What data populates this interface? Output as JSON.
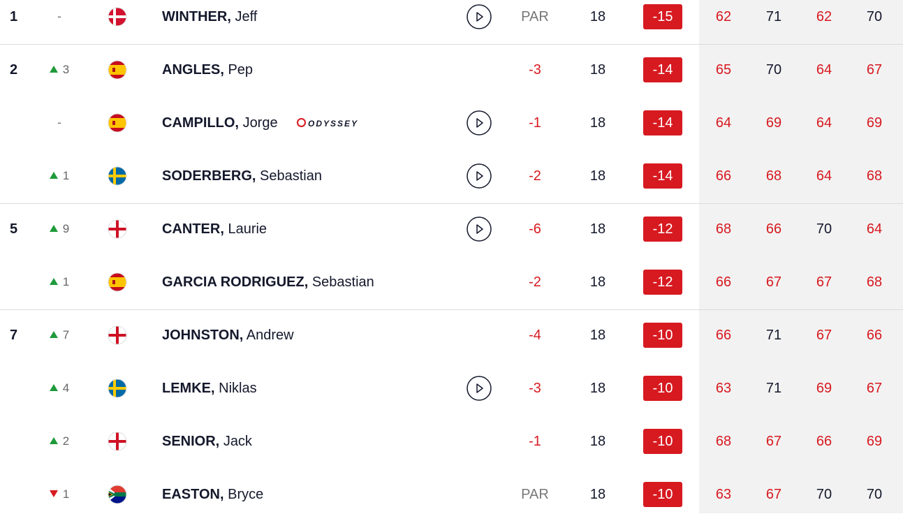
{
  "rows": [
    {
      "position": "1",
      "movement": "-",
      "surname": "WINTHER,",
      "first_name": "Jeff",
      "today": "PAR",
      "thru": 18,
      "total": "-15",
      "rounds": [
        62,
        71,
        62,
        70
      ]
    },
    {
      "position": "2",
      "movement": "3",
      "surname": "ANGLES,",
      "first_name": "Pep",
      "today": "-3",
      "thru": 18,
      "total": "-14",
      "rounds": [
        65,
        70,
        64,
        67
      ]
    },
    {
      "movement": "-",
      "surname": "CAMPILLO,",
      "first_name": "Jorge",
      "sponsor": "ODYSSEY",
      "today": "-1",
      "thru": 18,
      "total": "-14",
      "rounds": [
        64,
        69,
        64,
        69
      ]
    },
    {
      "movement": "1",
      "surname": "SODERBERG,",
      "first_name": "Sebastian",
      "today": "-2",
      "thru": 18,
      "total": "-14",
      "rounds": [
        66,
        68,
        64,
        68
      ]
    },
    {
      "position": "5",
      "movement": "9",
      "surname": "CANTER,",
      "first_name": "Laurie",
      "today": "-6",
      "thru": 18,
      "total": "-12",
      "rounds": [
        68,
        66,
        70,
        64
      ]
    },
    {
      "movement": "1",
      "surname": "GARCIA RODRIGUEZ,",
      "first_name": "Sebastian",
      "today": "-2",
      "thru": 18,
      "total": "-12",
      "rounds": [
        66,
        67,
        67,
        68
      ]
    },
    {
      "position": "7",
      "movement": "7",
      "surname": "JOHNSTON,",
      "first_name": "Andrew",
      "today": "-4",
      "thru": 18,
      "total": "-10",
      "rounds": [
        66,
        71,
        67,
        66
      ]
    },
    {
      "movement": "4",
      "surname": "LEMKE,",
      "first_name": "Niklas",
      "today": "-3",
      "thru": 18,
      "total": "-10",
      "rounds": [
        63,
        71,
        69,
        67
      ]
    },
    {
      "movement": "2",
      "surname": "SENIOR,",
      "first_name": "Jack",
      "today": "-1",
      "thru": 18,
      "total": "-10",
      "rounds": [
        68,
        67,
        66,
        69
      ]
    },
    {
      "movement": "1",
      "surname": "EASTON,",
      "first_name": "Bryce",
      "today": "PAR",
      "thru": 18,
      "total": "-10",
      "rounds": [
        63,
        67,
        70,
        70
      ]
    }
  ]
}
